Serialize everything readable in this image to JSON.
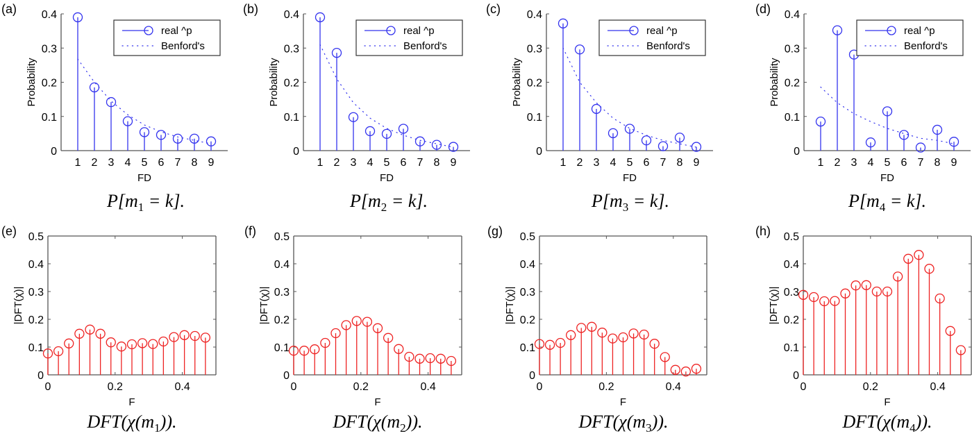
{
  "figure": {
    "legend": {
      "real_label": "real ^p",
      "benford_label": "Benford's"
    },
    "colors": {
      "stem_top": "#3333ee",
      "stem_bottom": "#ee2222",
      "axis": "#555555"
    }
  },
  "chart_data": [
    {
      "id": "a",
      "panel_label": "(a)",
      "type": "stem",
      "caption": "P[m1 = k].",
      "caption_parts": [
        "P[m",
        "1",
        " = k]."
      ],
      "xlabel": "FD",
      "ylabel": "Probability",
      "xlim": [
        0,
        10
      ],
      "ylim": [
        0,
        0.4
      ],
      "xticks": [
        1,
        2,
        3,
        4,
        5,
        6,
        7,
        8,
        9
      ],
      "xtick_labels": [
        "1",
        "2",
        "3",
        "4",
        "5",
        "6",
        "7",
        "8",
        "9"
      ],
      "yticks": [
        0,
        0.1,
        0.2,
        0.3,
        0.4
      ],
      "ytick_labels": [
        "0",
        "0.1",
        "0.2",
        "0.3",
        "0.4"
      ],
      "legend_position": "top-right",
      "x": [
        1,
        2,
        3,
        4,
        5,
        6,
        7,
        8,
        9
      ],
      "series": [
        {
          "name": "real ^p",
          "style": "stem",
          "values": [
            0.39,
            0.185,
            0.142,
            0.086,
            0.054,
            0.046,
            0.035,
            0.035,
            0.027
          ]
        },
        {
          "name": "Benford's",
          "style": "dotted",
          "values": [
            0.268,
            0.2,
            0.145,
            0.105,
            0.075,
            0.055,
            0.04,
            0.03,
            0.02
          ]
        }
      ]
    },
    {
      "id": "b",
      "panel_label": "(b)",
      "type": "stem",
      "caption": "P[m2 = k].",
      "caption_parts": [
        "P[m",
        "2",
        " = k]."
      ],
      "xlabel": "FD",
      "ylabel": "Probability",
      "xlim": [
        0,
        10
      ],
      "ylim": [
        0,
        0.4
      ],
      "xticks": [
        1,
        2,
        3,
        4,
        5,
        6,
        7,
        8,
        9
      ],
      "xtick_labels": [
        "1",
        "2",
        "3",
        "4",
        "5",
        "6",
        "7",
        "8",
        "9"
      ],
      "yticks": [
        0,
        0.1,
        0.2,
        0.3,
        0.4
      ],
      "ytick_labels": [
        "0",
        "0.1",
        "0.2",
        "0.3",
        "0.4"
      ],
      "legend_position": "top-right",
      "x": [
        1,
        2,
        3,
        4,
        5,
        6,
        7,
        8,
        9
      ],
      "series": [
        {
          "name": "real ^p",
          "style": "stem",
          "values": [
            0.39,
            0.286,
            0.098,
            0.057,
            0.049,
            0.064,
            0.027,
            0.017,
            0.011
          ]
        },
        {
          "name": "Benford's",
          "style": "dotted",
          "values": [
            0.31,
            0.21,
            0.14,
            0.095,
            0.065,
            0.045,
            0.03,
            0.02,
            0.01
          ]
        }
      ]
    },
    {
      "id": "c",
      "panel_label": "(c)",
      "type": "stem",
      "caption": "P[m3 = k].",
      "caption_parts": [
        "P[m",
        "3",
        " = k]."
      ],
      "xlabel": "FD",
      "ylabel": "Probability",
      "xlim": [
        0,
        10
      ],
      "ylim": [
        0,
        0.4
      ],
      "xticks": [
        1,
        2,
        3,
        4,
        5,
        6,
        7,
        8,
        9
      ],
      "xtick_labels": [
        "1",
        "2",
        "3",
        "4",
        "5",
        "6",
        "7",
        "8",
        "9"
      ],
      "yticks": [
        0,
        0.1,
        0.2,
        0.3,
        0.4
      ],
      "ytick_labels": [
        "0",
        "0.1",
        "0.2",
        "0.3",
        "0.4"
      ],
      "legend_position": "top-right",
      "x": [
        1,
        2,
        3,
        4,
        5,
        6,
        7,
        8,
        9
      ],
      "series": [
        {
          "name": "real ^p",
          "style": "stem",
          "values": [
            0.372,
            0.296,
            0.122,
            0.051,
            0.064,
            0.03,
            0.013,
            0.038,
            0.011
          ]
        },
        {
          "name": "Benford's",
          "style": "dotted",
          "values": [
            0.3,
            0.2,
            0.14,
            0.095,
            0.065,
            0.045,
            0.03,
            0.02,
            0.01
          ]
        }
      ]
    },
    {
      "id": "d",
      "panel_label": "(d)",
      "type": "stem",
      "caption": "P[m4 = k].",
      "caption_parts": [
        "P[m",
        "4",
        " = k]."
      ],
      "xlabel": "FD",
      "ylabel": "Probability",
      "xlim": [
        0,
        10
      ],
      "ylim": [
        0,
        0.4
      ],
      "xticks": [
        1,
        2,
        3,
        4,
        5,
        6,
        7,
        8,
        9
      ],
      "xtick_labels": [
        "1",
        "2",
        "3",
        "4",
        "5",
        "6",
        "7",
        "8",
        "9"
      ],
      "yticks": [
        0,
        0.1,
        0.2,
        0.3,
        0.4
      ],
      "ytick_labels": [
        "0",
        "0.1",
        "0.2",
        "0.3",
        "0.4"
      ],
      "legend_position": "top-right",
      "x": [
        1,
        2,
        3,
        4,
        5,
        6,
        7,
        8,
        9
      ],
      "series": [
        {
          "name": "real ^p",
          "style": "stem",
          "values": [
            0.085,
            0.352,
            0.281,
            0.024,
            0.115,
            0.046,
            0.009,
            0.061,
            0.026
          ]
        },
        {
          "name": "Benford's",
          "style": "dotted",
          "values": [
            0.186,
            0.14,
            0.108,
            0.085,
            0.065,
            0.05,
            0.036,
            0.03,
            0.02
          ]
        }
      ]
    },
    {
      "id": "e",
      "panel_label": "(e)",
      "type": "stem",
      "caption": "DFT(χ(m1)).",
      "caption_parts": [
        "DFT(χ(m",
        "1",
        "))."
      ],
      "xlabel": "F",
      "ylabel": "|DFT(χ)|",
      "xlim": [
        0,
        0.5
      ],
      "ylim": [
        0,
        0.5
      ],
      "xticks": [
        0,
        0.2,
        0.4
      ],
      "xtick_labels": [
        "0",
        "0.2",
        "0.4"
      ],
      "yticks": [
        0,
        0.1,
        0.2,
        0.3,
        0.4,
        0.5
      ],
      "ytick_labels": [
        "0",
        "0.1",
        "0.2",
        "0.3",
        "0.4",
        "0.5"
      ],
      "x": [
        0,
        0.03125,
        0.0625,
        0.09375,
        0.125,
        0.15625,
        0.1875,
        0.21875,
        0.25,
        0.28125,
        0.3125,
        0.34375,
        0.375,
        0.40625,
        0.4375,
        0.46875
      ],
      "series": [
        {
          "name": "|DFT(χ(m1))|",
          "style": "stem",
          "values": [
            0.077,
            0.085,
            0.113,
            0.148,
            0.163,
            0.148,
            0.117,
            0.102,
            0.11,
            0.114,
            0.111,
            0.12,
            0.136,
            0.143,
            0.14,
            0.134
          ]
        }
      ]
    },
    {
      "id": "f",
      "panel_label": "(f)",
      "type": "stem",
      "caption": "DFT(χ(m2)).",
      "caption_parts": [
        "DFT(χ(m",
        "2",
        "))."
      ],
      "xlabel": "F",
      "ylabel": "|DFT(χ)|",
      "xlim": [
        0,
        0.5
      ],
      "ylim": [
        0,
        0.5
      ],
      "xticks": [
        0,
        0.2,
        0.4
      ],
      "xtick_labels": [
        "0",
        "0.2",
        "0.4"
      ],
      "yticks": [
        0,
        0.1,
        0.2,
        0.3,
        0.4,
        0.5
      ],
      "ytick_labels": [
        "0",
        "0.1",
        "0.2",
        "0.3",
        "0.4",
        "0.5"
      ],
      "x": [
        0,
        0.03125,
        0.0625,
        0.09375,
        0.125,
        0.15625,
        0.1875,
        0.21875,
        0.25,
        0.28125,
        0.3125,
        0.34375,
        0.375,
        0.40625,
        0.4375,
        0.46875
      ],
      "series": [
        {
          "name": "|DFT(χ(m2))|",
          "style": "stem",
          "values": [
            0.087,
            0.087,
            0.092,
            0.115,
            0.15,
            0.179,
            0.194,
            0.191,
            0.168,
            0.133,
            0.093,
            0.065,
            0.058,
            0.06,
            0.058,
            0.05
          ]
        }
      ]
    },
    {
      "id": "g",
      "panel_label": "(g)",
      "type": "stem",
      "caption": "DFT(χ(m3)).",
      "caption_parts": [
        "DFT(χ(m",
        "3",
        "))."
      ],
      "xlabel": "F",
      "ylabel": "|DFT(χ)|",
      "xlim": [
        0,
        0.5
      ],
      "ylim": [
        0,
        0.5
      ],
      "xticks": [
        0,
        0.2,
        0.4
      ],
      "xtick_labels": [
        "0",
        "0.2",
        "0.4"
      ],
      "yticks": [
        0,
        0.1,
        0.2,
        0.3,
        0.4,
        0.5
      ],
      "ytick_labels": [
        "0",
        "0.1",
        "0.2",
        "0.3",
        "0.4",
        "0.5"
      ],
      "x": [
        0,
        0.03125,
        0.0625,
        0.09375,
        0.125,
        0.15625,
        0.1875,
        0.21875,
        0.25,
        0.28125,
        0.3125,
        0.34375,
        0.375,
        0.40625,
        0.4375,
        0.46875
      ],
      "series": [
        {
          "name": "|DFT(χ(m3))|",
          "style": "stem",
          "values": [
            0.111,
            0.108,
            0.115,
            0.143,
            0.169,
            0.173,
            0.152,
            0.131,
            0.135,
            0.149,
            0.145,
            0.112,
            0.064,
            0.018,
            0.012,
            0.022
          ]
        }
      ]
    },
    {
      "id": "h",
      "panel_label": "(h)",
      "type": "stem",
      "caption": "DFT(χ(m4)).",
      "caption_parts": [
        "DFT(χ(m",
        "4",
        "))."
      ],
      "xlabel": "F",
      "ylabel": "|DFT(χ)|",
      "xlim": [
        0,
        0.5
      ],
      "ylim": [
        0,
        0.5
      ],
      "xticks": [
        0,
        0.2,
        0.4
      ],
      "xtick_labels": [
        "0",
        "0.2",
        "0.4"
      ],
      "yticks": [
        0,
        0.1,
        0.2,
        0.3,
        0.4,
        0.5
      ],
      "ytick_labels": [
        "0",
        "0.1",
        "0.2",
        "0.3",
        "0.4",
        "0.5"
      ],
      "x": [
        0,
        0.03125,
        0.0625,
        0.09375,
        0.125,
        0.15625,
        0.1875,
        0.21875,
        0.25,
        0.28125,
        0.3125,
        0.34375,
        0.375,
        0.40625,
        0.4375,
        0.46875
      ],
      "series": [
        {
          "name": "|DFT(χ(m4))|",
          "style": "stem",
          "values": [
            0.288,
            0.28,
            0.265,
            0.266,
            0.293,
            0.322,
            0.323,
            0.3,
            0.3,
            0.354,
            0.418,
            0.432,
            0.382,
            0.275,
            0.158,
            0.089
          ]
        }
      ]
    }
  ]
}
